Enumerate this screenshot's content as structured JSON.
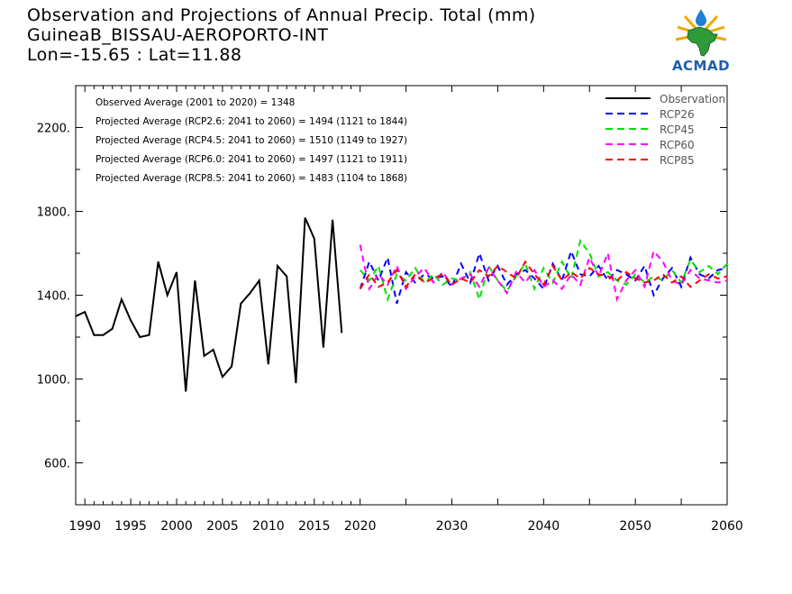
{
  "header": {
    "title_line1": "Observation and Projections of Annual Precip. Total (mm)",
    "title_line2": "GuineaB_BISSAU-AEROPORTO-INT",
    "title_line3": "Lon=-15.65 : Lat=11.88"
  },
  "logo": {
    "text": "ACMAD",
    "icon": "africa-map-logo"
  },
  "colors": {
    "Observation": "#000000",
    "RCP26": "#0000ff",
    "RCP45": "#00e000",
    "RCP60": "#ff00ff",
    "RCP85": "#ff0000"
  },
  "chart_data": {
    "type": "line",
    "xlim": [
      1989,
      2060
    ],
    "ylim": [
      400,
      2400
    ],
    "x_ticks": [
      1990,
      1995,
      2000,
      2005,
      2010,
      2015,
      2020,
      2030,
      2040,
      2050,
      2060
    ],
    "y_ticks": [
      600,
      1000,
      1400,
      1800,
      2200
    ],
    "y_tick_labels": [
      "600.",
      "1000.",
      "1400.",
      "1800.",
      "2200."
    ],
    "legend_position": "top-right",
    "annotations": [
      "Observed Average (2001 to 2020) = 1348",
      "Projected Average (RCP2.6: 2041 to 2060) = 1494 (1121 to 1844)",
      "Projected Average (RCP4.5: 2041 to 2060) = 1510 (1149 to 1927)",
      "Projected Average (RCP6.0: 2041 to 2060) = 1497 (1121 to 1911)",
      "Projected Average (RCP8.5: 2041 to 2060) = 1483 (1104 to 1868)"
    ],
    "series": [
      {
        "name": "Observation",
        "style": "solid",
        "x": [
          1989,
          1990,
          1991,
          1992,
          1993,
          1994,
          1995,
          1996,
          1997,
          1998,
          1999,
          2000,
          2001,
          2002,
          2003,
          2004,
          2005,
          2006,
          2007,
          2008,
          2009,
          2010,
          2011,
          2012,
          2013,
          2014,
          2015,
          2016,
          2017,
          2018,
          2019
        ],
        "values": [
          1300,
          1320,
          1210,
          1210,
          1240,
          1380,
          1280,
          1200,
          1210,
          1560,
          1400,
          1510,
          940,
          1470,
          1110,
          1140,
          1010,
          1060,
          1360,
          1410,
          1470,
          1070,
          1540,
          1490,
          980,
          1770,
          1670,
          1150,
          1760,
          1220,
          null
        ]
      },
      {
        "name": "RCP26",
        "style": "dashed",
        "x": [
          2020,
          2021,
          2022,
          2023,
          2024,
          2025,
          2026,
          2027,
          2028,
          2029,
          2030,
          2031,
          2032,
          2033,
          2034,
          2035,
          2036,
          2037,
          2038,
          2039,
          2040,
          2041,
          2042,
          2043,
          2044,
          2045,
          2046,
          2047,
          2048,
          2049,
          2050,
          2051,
          2052,
          2053,
          2054,
          2055,
          2056,
          2057,
          2058,
          2059,
          2060
        ],
        "values": [
          1430,
          1560,
          1470,
          1580,
          1360,
          1510,
          1460,
          1500,
          1480,
          1490,
          1440,
          1550,
          1460,
          1600,
          1470,
          1540,
          1450,
          1500,
          1520,
          1480,
          1430,
          1550,
          1470,
          1610,
          1500,
          1490,
          1540,
          1470,
          1520,
          1500,
          1470,
          1540,
          1400,
          1480,
          1530,
          1440,
          1580,
          1500,
          1480,
          1520,
          1530
        ]
      },
      {
        "name": "RCP45",
        "style": "dashed",
        "x": [
          2020,
          2021,
          2022,
          2023,
          2024,
          2025,
          2026,
          2027,
          2028,
          2029,
          2030,
          2031,
          2032,
          2033,
          2034,
          2035,
          2036,
          2037,
          2038,
          2039,
          2040,
          2041,
          2042,
          2043,
          2044,
          2045,
          2046,
          2047,
          2048,
          2049,
          2050,
          2051,
          2052,
          2053,
          2054,
          2055,
          2056,
          2057,
          2058,
          2059,
          2060
        ],
        "values": [
          1520,
          1470,
          1540,
          1380,
          1500,
          1470,
          1530,
          1460,
          1500,
          1450,
          1480,
          1470,
          1510,
          1380,
          1540,
          1470,
          1420,
          1490,
          1550,
          1430,
          1530,
          1460,
          1560,
          1480,
          1660,
          1600,
          1490,
          1510,
          1470,
          1450,
          1500,
          1460,
          1490,
          1470,
          1520,
          1460,
          1570,
          1510,
          1540,
          1500,
          1550
        ]
      },
      {
        "name": "RCP60",
        "style": "dashed",
        "x": [
          2020,
          2021,
          2022,
          2023,
          2024,
          2025,
          2026,
          2027,
          2028,
          2029,
          2030,
          2031,
          2032,
          2033,
          2034,
          2035,
          2036,
          2037,
          2038,
          2039,
          2040,
          2041,
          2042,
          2043,
          2044,
          2045,
          2046,
          2047,
          2048,
          2049,
          2050,
          2051,
          2052,
          2053,
          2054,
          2055,
          2056,
          2057,
          2058,
          2059,
          2060
        ],
        "values": [
          1640,
          1430,
          1500,
          1450,
          1540,
          1430,
          1490,
          1530,
          1460,
          1510,
          1450,
          1480,
          1500,
          1440,
          1530,
          1470,
          1410,
          1510,
          1460,
          1520,
          1440,
          1470,
          1430,
          1500,
          1450,
          1580,
          1490,
          1600,
          1380,
          1470,
          1520,
          1440,
          1610,
          1560,
          1470,
          1450,
          1520,
          1480,
          1470,
          1460,
          1470
        ]
      },
      {
        "name": "RCP85",
        "style": "dashed",
        "x": [
          2020,
          2021,
          2022,
          2023,
          2024,
          2025,
          2026,
          2027,
          2028,
          2029,
          2030,
          2031,
          2032,
          2033,
          2034,
          2035,
          2036,
          2037,
          2038,
          2039,
          2040,
          2041,
          2042,
          2043,
          2044,
          2045,
          2046,
          2047,
          2048,
          2049,
          2050,
          2051,
          2052,
          2053,
          2054,
          2055,
          2056,
          2057,
          2058,
          2059,
          2060
        ],
        "values": [
          1430,
          1500,
          1440,
          1460,
          1520,
          1440,
          1500,
          1460,
          1480,
          1500,
          1450,
          1480,
          1460,
          1520,
          1490,
          1540,
          1510,
          1480,
          1560,
          1500,
          1450,
          1540,
          1470,
          1510,
          1480,
          1530,
          1500,
          1490,
          1470,
          1510,
          1480,
          1460,
          1470,
          1500,
          1460,
          1490,
          1440,
          1470,
          1500,
          1480,
          1490
        ]
      }
    ]
  }
}
